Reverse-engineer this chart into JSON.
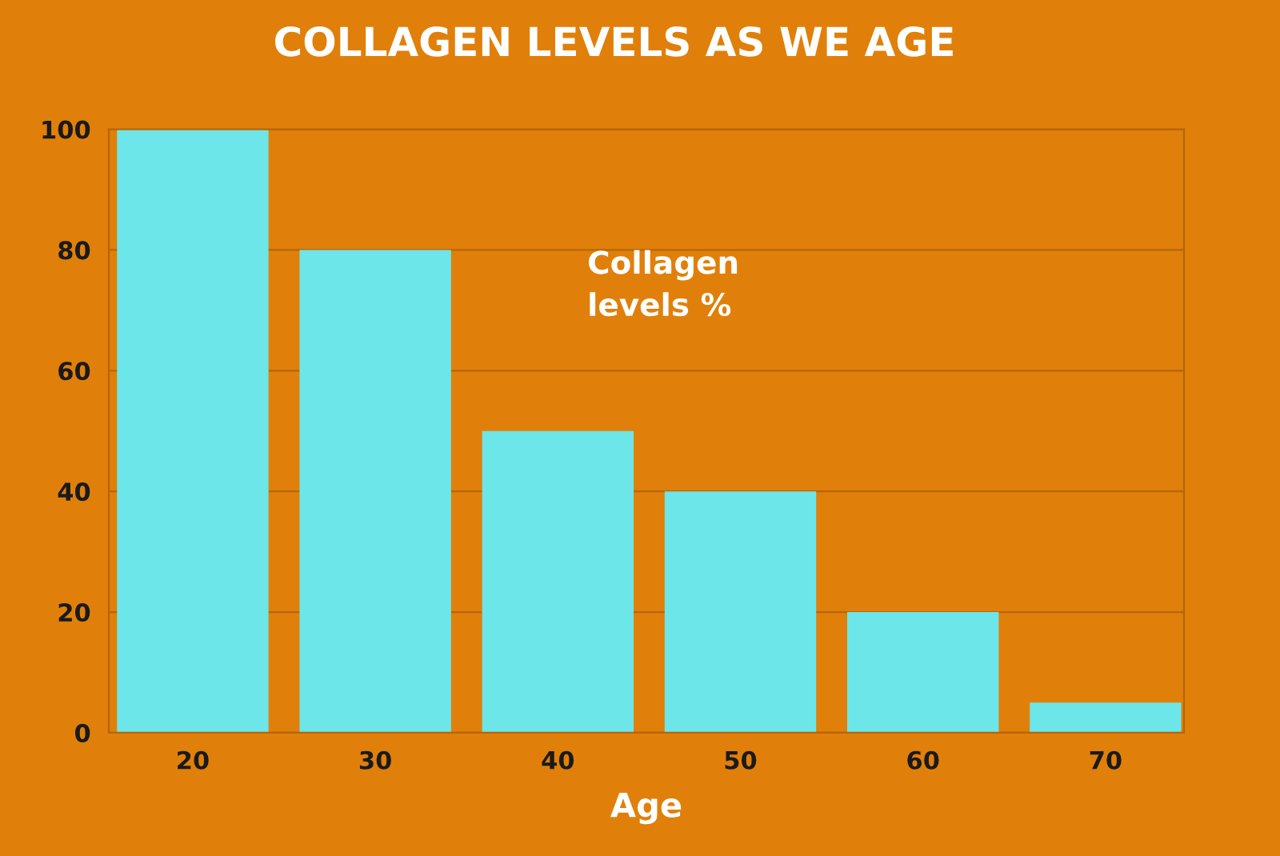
{
  "chart_data": {
    "type": "bar",
    "title": "COLLAGEN LEVELS AS WE AGE",
    "xlabel": "Age",
    "categories": [
      "20",
      "30",
      "40",
      "50",
      "60",
      "70"
    ],
    "values": [
      100,
      80,
      50,
      40,
      20,
      5
    ],
    "color": "#6ce6e8",
    "ylim": [
      0,
      100
    ],
    "yticks": [
      0,
      20,
      40,
      60,
      80,
      100
    ],
    "grid": "y",
    "legend": false,
    "annotations": [
      "Collagen\nlevels %"
    ]
  }
}
